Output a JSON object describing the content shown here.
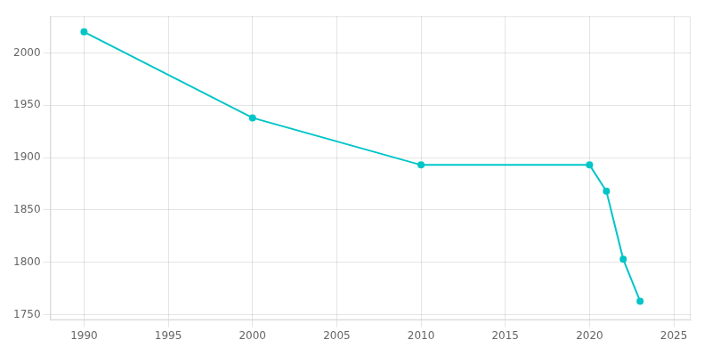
{
  "chart_data": {
    "type": "line",
    "x": [
      1990,
      2000,
      2010,
      2020,
      2021,
      2022,
      2023
    ],
    "values": [
      2020,
      1938,
      1893,
      1893,
      1868,
      1803,
      1763
    ],
    "color": "#00C5C8",
    "marker": "circle",
    "xlim": [
      1988,
      2026
    ],
    "ylim": [
      1745,
      2035
    ],
    "xticks": [
      1990,
      1995,
      2000,
      2005,
      2010,
      2015,
      2020,
      2025
    ],
    "yticks": [
      1750,
      1800,
      1850,
      1900,
      1950,
      2000
    ],
    "grid": true
  }
}
